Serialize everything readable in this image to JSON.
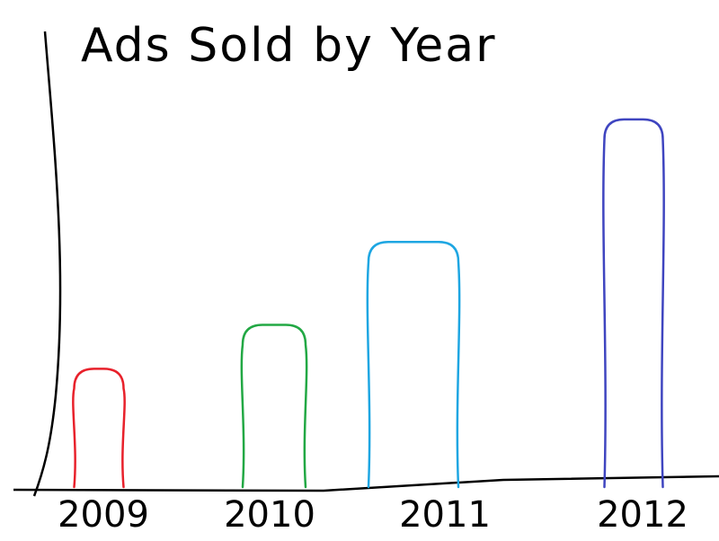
{
  "chart_data": {
    "type": "bar",
    "title": "Ads Sold by Year",
    "xlabel": "",
    "ylabel": "",
    "categories": [
      "2009",
      "2010",
      "2011",
      "2012"
    ],
    "values": [
      140,
      192,
      290,
      435
    ],
    "ylim": [
      0,
      470
    ],
    "grid": false,
    "legend": "none",
    "colors": [
      "#e8212b",
      "#22a844",
      "#1ea6e2",
      "#3f45c0"
    ]
  }
}
